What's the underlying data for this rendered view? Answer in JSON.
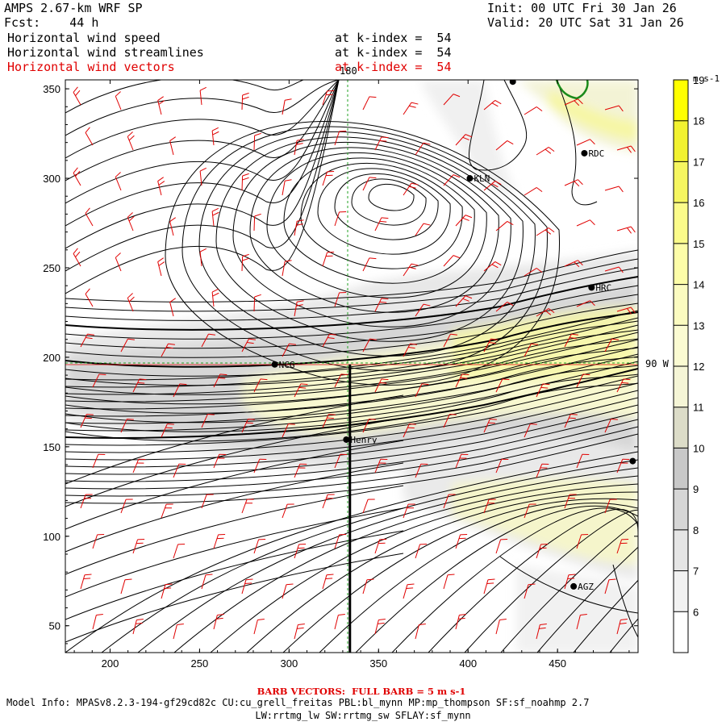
{
  "header": {
    "title": "AMPS 2.67-km WRF SP",
    "forecast": "Fcst:    44 h",
    "init": "Init: 00 UTC Fri 30 Jan 26",
    "valid": "Valid: 20 UTC Sat 31 Jan 26",
    "fields": [
      {
        "name": "Horizontal wind speed",
        "level": "at k-index =  54",
        "color": "#000000"
      },
      {
        "name": "Horizontal wind streamlines",
        "level": "at k-index =  54",
        "color": "#000000"
      },
      {
        "name": "Horizontal wind vectors",
        "level": "at k-index =  54",
        "color": "#e00000"
      }
    ]
  },
  "chart_data": {
    "type": "heatmap",
    "title": "Horizontal wind speed",
    "xlim": [
      175,
      495
    ],
    "ylim": [
      35,
      355
    ],
    "x_ticks": [
      200,
      250,
      300,
      350,
      400,
      450
    ],
    "y_ticks": [
      50,
      100,
      150,
      200,
      250,
      300,
      350
    ],
    "meridian_label": "180",
    "parallel_label": "90 W",
    "cross_section_x": 334,
    "cross_section_y": [
      35,
      196
    ],
    "colorbar": {
      "units": "m s-1",
      "levels": [
        6,
        7,
        8,
        9,
        10,
        11,
        12,
        13,
        14,
        15,
        16,
        17,
        18,
        19
      ],
      "colors": [
        "#ffffff",
        "#f2f2f2",
        "#e5e5e5",
        "#d6d6d6",
        "#c8c8c8",
        "#dcdcc8",
        "#f5f5d6",
        "#fbfbd2",
        "#fbfbc0",
        "#fdfda8",
        "#fbfb8a",
        "#f6f660",
        "#f2f230",
        "#ffff00"
      ]
    },
    "stations": [
      {
        "name": "NCG",
        "x": 292,
        "y": 196
      },
      {
        "name": "Henry",
        "x": 332,
        "y": 154
      },
      {
        "name": "KLN",
        "x": 401,
        "y": 300
      },
      {
        "name": "RDC",
        "x": 465,
        "y": 314
      },
      {
        "name": "HRC",
        "x": 469,
        "y": 239
      },
      {
        "name": "AGZ",
        "x": 459,
        "y": 72
      },
      {
        "name": "",
        "x": 425,
        "y": 354
      },
      {
        "name": "",
        "x": 492,
        "y": 142
      }
    ],
    "barb_note": "BARB VECTORS:  FULL BARB = 5 m s-1"
  },
  "footer": {
    "model_info": "Model Info: MPASv8.2.3-194-gf29cd82c CU:cu_grell_freitas PBL:bl_mynn MP:mp_thompson SF:sf_noahmp 2.7",
    "model_info2": "LW:rrtmg_lw SW:rrtmg_sw SFLAY:sf_mynn"
  }
}
